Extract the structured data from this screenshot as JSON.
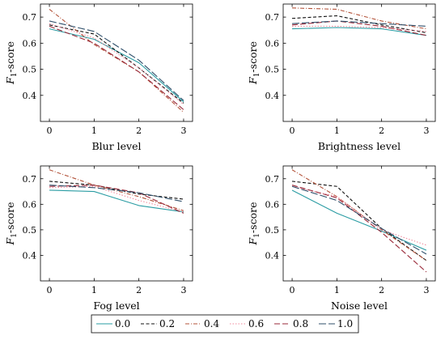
{
  "chart_data": [
    {
      "type": "line",
      "xlabel": "Blur level",
      "ylabel": "F1-score",
      "ylabel_main": "F",
      "ylabel_sub": "1",
      "ylabel_rest": "-score",
      "x": [
        0,
        1,
        2,
        3
      ],
      "xlim": [
        -0.2,
        3.2
      ],
      "ylim": [
        0.3,
        0.75
      ],
      "yticks": [
        0.4,
        0.5,
        0.6,
        0.7
      ],
      "grid": false,
      "series": [
        {
          "name": "0.0",
          "values": [
            0.655,
            0.615,
            0.525,
            0.375
          ]
        },
        {
          "name": "0.2",
          "values": [
            0.67,
            0.635,
            0.505,
            0.37
          ]
        },
        {
          "name": "0.4",
          "values": [
            0.73,
            0.595,
            0.49,
            0.335
          ]
        },
        {
          "name": "0.6",
          "values": [
            0.675,
            0.62,
            0.505,
            0.365
          ]
        },
        {
          "name": "0.8",
          "values": [
            0.665,
            0.6,
            0.49,
            0.345
          ]
        },
        {
          "name": "1.0",
          "values": [
            0.685,
            0.645,
            0.535,
            0.38
          ]
        }
      ]
    },
    {
      "type": "line",
      "xlabel": "Brightness level",
      "ylabel": "F1-score",
      "ylabel_main": "F",
      "ylabel_sub": "1",
      "ylabel_rest": "-score",
      "x": [
        0,
        1,
        2,
        3
      ],
      "xlim": [
        -0.2,
        3.2
      ],
      "ylim": [
        0.3,
        0.75
      ],
      "yticks": [
        0.4,
        0.5,
        0.6,
        0.7
      ],
      "grid": false,
      "series": [
        {
          "name": "0.0",
          "values": [
            0.655,
            0.66,
            0.655,
            0.63
          ]
        },
        {
          "name": "0.2",
          "values": [
            0.695,
            0.705,
            0.67,
            0.64
          ]
        },
        {
          "name": "0.4",
          "values": [
            0.735,
            0.73,
            0.685,
            0.655
          ]
        },
        {
          "name": "0.6",
          "values": [
            0.665,
            0.665,
            0.66,
            0.645
          ]
        },
        {
          "name": "0.8",
          "values": [
            0.67,
            0.685,
            0.665,
            0.63
          ]
        },
        {
          "name": "1.0",
          "values": [
            0.675,
            0.685,
            0.675,
            0.665
          ]
        }
      ]
    },
    {
      "type": "line",
      "xlabel": "Fog level",
      "ylabel": "F1-score",
      "ylabel_main": "F",
      "ylabel_sub": "1",
      "ylabel_rest": "-score",
      "x": [
        0,
        1,
        2,
        3
      ],
      "xlim": [
        -0.2,
        3.2
      ],
      "ylim": [
        0.3,
        0.75
      ],
      "yticks": [
        0.4,
        0.5,
        0.6,
        0.7
      ],
      "grid": false,
      "series": [
        {
          "name": "0.0",
          "values": [
            0.655,
            0.65,
            0.595,
            0.57
          ]
        },
        {
          "name": "0.2",
          "values": [
            0.69,
            0.675,
            0.64,
            0.62
          ]
        },
        {
          "name": "0.4",
          "values": [
            0.735,
            0.675,
            0.63,
            0.575
          ]
        },
        {
          "name": "0.6",
          "values": [
            0.665,
            0.67,
            0.615,
            0.57
          ]
        },
        {
          "name": "0.8",
          "values": [
            0.67,
            0.675,
            0.645,
            0.565
          ]
        },
        {
          "name": "1.0",
          "values": [
            0.675,
            0.665,
            0.645,
            0.61
          ]
        }
      ]
    },
    {
      "type": "line",
      "xlabel": "Noise level",
      "ylabel": "F1-score",
      "ylabel_main": "F",
      "ylabel_sub": "1",
      "ylabel_rest": "-score",
      "x": [
        0,
        1,
        2,
        3
      ],
      "xlim": [
        -0.2,
        3.2
      ],
      "ylim": [
        0.3,
        0.75
      ],
      "yticks": [
        0.4,
        0.5,
        0.6,
        0.7
      ],
      "grid": false,
      "series": [
        {
          "name": "0.0",
          "values": [
            0.655,
            0.565,
            0.495,
            0.42
          ]
        },
        {
          "name": "0.2",
          "values": [
            0.69,
            0.67,
            0.505,
            0.38
          ]
        },
        {
          "name": "0.4",
          "values": [
            0.735,
            0.63,
            0.5,
            0.38
          ]
        },
        {
          "name": "0.6",
          "values": [
            0.67,
            0.63,
            0.5,
            0.44
          ]
        },
        {
          "name": "0.8",
          "values": [
            0.675,
            0.625,
            0.49,
            0.335
          ]
        },
        {
          "name": "1.0",
          "values": [
            0.67,
            0.615,
            0.505,
            0.405
          ]
        }
      ]
    }
  ],
  "legend": {
    "placement": "bottom-center",
    "entries": [
      {
        "name": "0.0",
        "color": "#2a9ca3",
        "dash": "solid"
      },
      {
        "name": "0.2",
        "color": "#111111",
        "dash": "dashed"
      },
      {
        "name": "0.4",
        "color": "#b3533a",
        "dash": "dashdot"
      },
      {
        "name": "0.6",
        "color": "#f08a9c",
        "dash": "dotted"
      },
      {
        "name": "0.8",
        "color": "#9a2a3a",
        "dash": "longdash"
      },
      {
        "name": "1.0",
        "color": "#2f4f6a",
        "dash": "longdash2"
      }
    ]
  }
}
